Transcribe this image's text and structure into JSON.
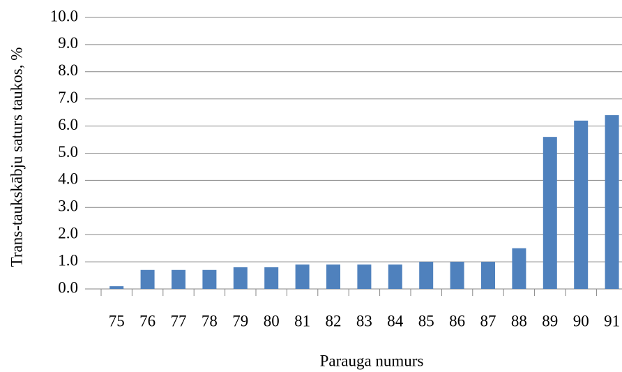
{
  "chart_data": {
    "type": "bar",
    "x_label": "Parauga numurs",
    "y_label": "Trans-taukskābju saturs taukos, %",
    "categories": [
      "75",
      "76",
      "77",
      "78",
      "79",
      "80",
      "81",
      "82",
      "83",
      "84",
      "85",
      "86",
      "87",
      "88",
      "89",
      "90",
      "91"
    ],
    "values": [
      0.1,
      0.7,
      0.7,
      0.7,
      0.8,
      0.8,
      0.9,
      0.9,
      0.9,
      0.9,
      1.0,
      1.0,
      1.0,
      1.5,
      5.6,
      6.2,
      6.4
    ],
    "color": "#4f81bd",
    "ylim": [
      0,
      10
    ],
    "yticks": [
      {
        "value": 0,
        "label": "0.0"
      },
      {
        "value": 1,
        "label": "1.0"
      },
      {
        "value": 2,
        "label": "2.0"
      },
      {
        "value": 3,
        "label": "3.0"
      },
      {
        "value": 4,
        "label": "4.0"
      },
      {
        "value": 5,
        "label": "5.0"
      },
      {
        "value": 6,
        "label": "6.0"
      },
      {
        "value": 7,
        "label": "7.0"
      },
      {
        "value": 8,
        "label": "8.0"
      },
      {
        "value": 9,
        "label": "9.0"
      },
      {
        "value": 10,
        "label": "10.0"
      }
    ],
    "grid": true
  }
}
